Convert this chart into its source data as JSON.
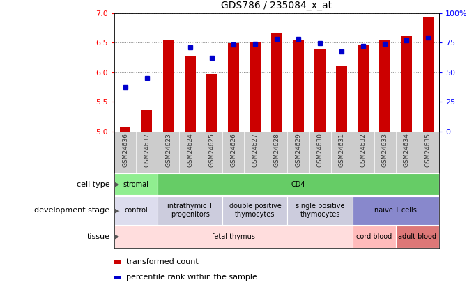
{
  "title": "GDS786 / 235084_x_at",
  "samples": [
    "GSM24636",
    "GSM24637",
    "GSM24623",
    "GSM24624",
    "GSM24625",
    "GSM24626",
    "GSM24627",
    "GSM24628",
    "GSM24629",
    "GSM24630",
    "GSM24631",
    "GSM24632",
    "GSM24633",
    "GSM24634",
    "GSM24635"
  ],
  "bar_values": [
    5.07,
    5.37,
    6.55,
    6.28,
    5.97,
    6.49,
    6.5,
    6.65,
    6.55,
    6.38,
    6.1,
    6.45,
    6.55,
    6.62,
    6.93
  ],
  "dot_values": [
    5.75,
    5.9,
    null,
    6.42,
    6.24,
    6.47,
    6.48,
    6.56,
    6.56,
    6.49,
    6.35,
    6.44,
    6.48,
    6.54,
    6.58
  ],
  "ylim_left": [
    5.0,
    7.0
  ],
  "ylim_right": [
    0,
    100
  ],
  "yticks_left": [
    5.0,
    5.5,
    6.0,
    6.5,
    7.0
  ],
  "yticks_right": [
    0,
    25,
    50,
    75,
    100
  ],
  "bar_color": "#cc0000",
  "dot_color": "#0000cc",
  "bar_bottom": 5.0,
  "cell_type_groups": [
    {
      "label": "stromal",
      "start": 0,
      "end": 2,
      "color": "#90ee90"
    },
    {
      "label": "CD4",
      "start": 2,
      "end": 15,
      "color": "#66cc66"
    }
  ],
  "dev_stage_groups": [
    {
      "label": "control",
      "start": 0,
      "end": 2,
      "color": "#ddddee"
    },
    {
      "label": "intrathymic T\nprogenitors",
      "start": 2,
      "end": 5,
      "color": "#ccccdd"
    },
    {
      "label": "double positive\nthymocytes",
      "start": 5,
      "end": 8,
      "color": "#ccccdd"
    },
    {
      "label": "single positive\nthymocytes",
      "start": 8,
      "end": 11,
      "color": "#ccccdd"
    },
    {
      "label": "naive T cells",
      "start": 11,
      "end": 15,
      "color": "#8888cc"
    }
  ],
  "tissue_groups": [
    {
      "label": "fetal thymus",
      "start": 0,
      "end": 11,
      "color": "#ffdddd"
    },
    {
      "label": "cord blood",
      "start": 11,
      "end": 13,
      "color": "#ffbbbb"
    },
    {
      "label": "adult blood",
      "start": 13,
      "end": 15,
      "color": "#dd7777"
    }
  ],
  "bg_color": "#ffffff",
  "grid_color": "#888888",
  "xtick_bg": "#cccccc",
  "row_labels": [
    "cell type",
    "development stage",
    "tissue"
  ],
  "legend_items": [
    {
      "color": "#cc0000",
      "label": "transformed count"
    },
    {
      "color": "#0000cc",
      "label": "percentile rank within the sample"
    }
  ]
}
